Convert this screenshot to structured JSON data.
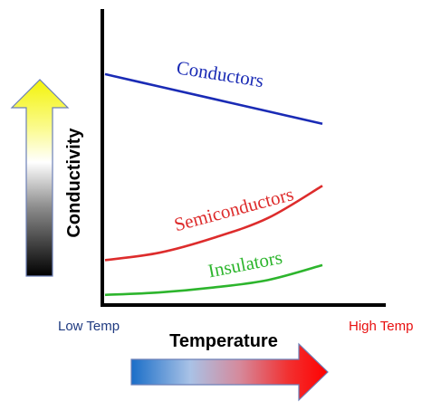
{
  "chart_data": {
    "type": "line",
    "xlabel": "Temperature",
    "ylabel": "Conductivity",
    "x_low_label": "Low Temp",
    "x_high_label": "High Temp",
    "x": [
      0,
      0.25,
      0.5,
      0.75,
      1.0
    ],
    "series": [
      {
        "name": "Conductors",
        "values": [
          0.92,
          0.87,
          0.82,
          0.77,
          0.72
        ],
        "color": "#1a2bb5"
      },
      {
        "name": "Semiconductors",
        "values": [
          0.17,
          0.2,
          0.26,
          0.34,
          0.47
        ],
        "color": "#dd2c2c"
      },
      {
        "name": "Insulators",
        "values": [
          0.03,
          0.04,
          0.06,
          0.09,
          0.15
        ],
        "color": "#2db52d"
      }
    ],
    "xlim": [
      0,
      1
    ],
    "ylim": [
      0,
      1
    ]
  },
  "colors": {
    "low_temp_text": "#1f3a80",
    "high_temp_text": "#e81010",
    "axis": "#000000"
  },
  "icons": {
    "conductivity_arrow": "up-arrow-gradient-icon",
    "temperature_arrow": "right-arrow-gradient-icon"
  }
}
